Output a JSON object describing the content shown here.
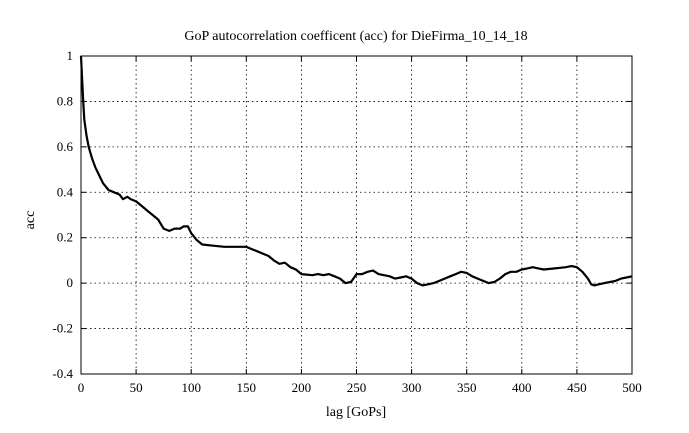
{
  "chart_data": {
    "type": "line",
    "title": "GoP autocorrelation coefficent (acc) for DieFirma_10_14_18",
    "xlabel": "lag [GoPs]",
    "ylabel": "acc",
    "xlim": [
      0,
      500
    ],
    "ylim": [
      -0.4,
      1
    ],
    "xticks": [
      0,
      50,
      100,
      150,
      200,
      250,
      300,
      350,
      400,
      450,
      500
    ],
    "xtick_labels": [
      "0",
      "50",
      "100",
      "150",
      "200",
      "250",
      "300",
      "350",
      "400",
      "450",
      "500"
    ],
    "yticks": [
      -0.4,
      -0.2,
      0,
      0.2,
      0.4,
      0.6,
      0.8,
      1
    ],
    "ytick_labels": [
      "-0.4",
      "-0.2",
      "0",
      "0.2",
      "0.4",
      "0.6",
      "0.8",
      "1"
    ],
    "grid": true,
    "series": [
      {
        "color": "#000000",
        "x": [
          0,
          1,
          2,
          3,
          5,
          7,
          10,
          13,
          17,
          20,
          25,
          30,
          35,
          38,
          42,
          45,
          50,
          55,
          60,
          65,
          70,
          75,
          80,
          85,
          90,
          93,
          97,
          100,
          105,
          110,
          120,
          130,
          140,
          150,
          155,
          160,
          165,
          170,
          175,
          180,
          185,
          190,
          195,
          200,
          210,
          215,
          220,
          225,
          230,
          235,
          240,
          245,
          250,
          255,
          260,
          265,
          270,
          275,
          280,
          285,
          290,
          295,
          300,
          305,
          310,
          315,
          320,
          325,
          330,
          335,
          340,
          345,
          350,
          355,
          360,
          365,
          370,
          375,
          380,
          385,
          390,
          395,
          400,
          405,
          410,
          415,
          420,
          430,
          440,
          445,
          450,
          455,
          460,
          463,
          466,
          470,
          475,
          480,
          485,
          490,
          495,
          500
        ],
        "y": [
          1.0,
          0.9,
          0.8,
          0.72,
          0.65,
          0.6,
          0.55,
          0.51,
          0.47,
          0.44,
          0.41,
          0.4,
          0.39,
          0.37,
          0.38,
          0.37,
          0.36,
          0.34,
          0.32,
          0.3,
          0.28,
          0.24,
          0.23,
          0.24,
          0.24,
          0.25,
          0.25,
          0.22,
          0.19,
          0.17,
          0.165,
          0.16,
          0.16,
          0.16,
          0.15,
          0.14,
          0.13,
          0.12,
          0.1,
          0.085,
          0.09,
          0.07,
          0.06,
          0.04,
          0.035,
          0.04,
          0.035,
          0.04,
          0.03,
          0.02,
          0.0,
          0.005,
          0.04,
          0.04,
          0.05,
          0.055,
          0.04,
          0.035,
          0.03,
          0.02,
          0.025,
          0.03,
          0.02,
          0.0,
          -0.01,
          -0.005,
          0.0,
          0.01,
          0.02,
          0.03,
          0.04,
          0.05,
          0.045,
          0.03,
          0.02,
          0.01,
          0.0,
          0.005,
          0.02,
          0.04,
          0.05,
          0.05,
          0.06,
          0.065,
          0.07,
          0.065,
          0.06,
          0.065,
          0.07,
          0.075,
          0.07,
          0.05,
          0.02,
          -0.005,
          -0.01,
          -0.005,
          0.0,
          0.005,
          0.01,
          0.02,
          0.025,
          0.03
        ]
      }
    ]
  }
}
